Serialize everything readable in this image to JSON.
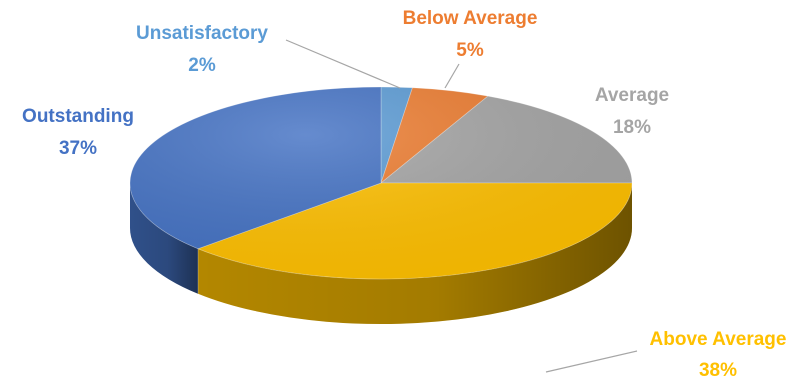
{
  "chart_data": {
    "type": "pie",
    "style": "3d",
    "legend": "none",
    "slices": [
      {
        "label": "Unsatisfactory",
        "value": 2,
        "value_text": "2%",
        "color": "#5B9BD5"
      },
      {
        "label": "Below Average",
        "value": 5,
        "value_text": "5%",
        "color": "#ED7D31"
      },
      {
        "label": "Average",
        "value": 18,
        "value_text": "18%",
        "color": "#A5A5A5"
      },
      {
        "label": "Above Average",
        "value": 38,
        "value_text": "38%",
        "color": "#FFC000"
      },
      {
        "label": "Outstanding",
        "value": 37,
        "value_text": "37%",
        "color": "#4472C4"
      }
    ]
  }
}
